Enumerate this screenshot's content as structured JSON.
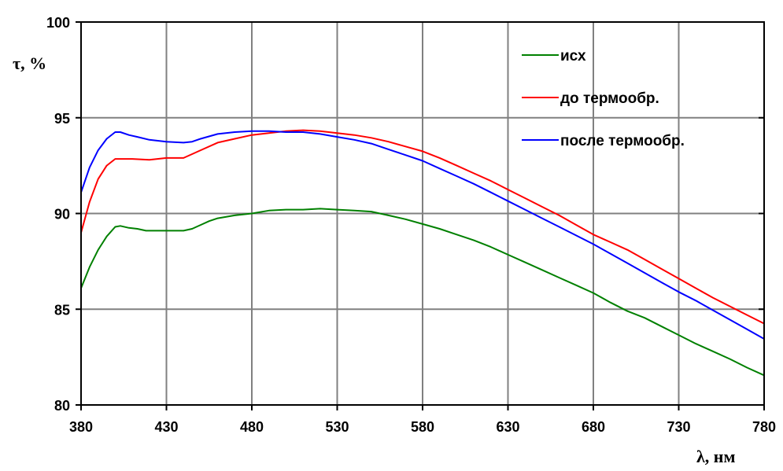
{
  "chart_data": {
    "type": "line",
    "title": "",
    "xlabel": "λ, нм",
    "ylabel": "τ, %",
    "xlim": [
      380,
      780
    ],
    "ylim": [
      80,
      100
    ],
    "xticks": [
      "380",
      "430",
      "480",
      "530",
      "580",
      "630",
      "680",
      "730",
      "780"
    ],
    "yticks": [
      "80",
      "85",
      "90",
      "95",
      "100"
    ],
    "grid": true,
    "legend_position": "top-right",
    "series": [
      {
        "name": "исх",
        "color": "#008000",
        "x": [
          380,
          385,
          390,
          395,
          400,
          403,
          408,
          413,
          418,
          425,
          430,
          435,
          440,
          445,
          450,
          455,
          460,
          470,
          480,
          490,
          500,
          510,
          520,
          530,
          540,
          550,
          560,
          570,
          580,
          590,
          600,
          610,
          620,
          630,
          640,
          650,
          660,
          670,
          680,
          690,
          700,
          710,
          720,
          730,
          740,
          750,
          760,
          770,
          780
        ],
        "y": [
          86.1,
          87.2,
          88.1,
          88.8,
          89.3,
          89.35,
          89.25,
          89.2,
          89.1,
          89.1,
          89.1,
          89.1,
          89.1,
          89.2,
          89.4,
          89.6,
          89.75,
          89.9,
          90.0,
          90.15,
          90.2,
          90.2,
          90.25,
          90.2,
          90.15,
          90.1,
          89.9,
          89.7,
          89.45,
          89.2,
          88.9,
          88.6,
          88.25,
          87.85,
          87.45,
          87.05,
          86.65,
          86.25,
          85.85,
          85.35,
          84.9,
          84.55,
          84.1,
          83.65,
          83.2,
          82.8,
          82.4,
          81.95,
          81.55
        ]
      },
      {
        "name": "до термообр.",
        "color": "#ff0000",
        "x": [
          380,
          385,
          390,
          395,
          400,
          405,
          410,
          420,
          430,
          440,
          445,
          450,
          460,
          470,
          480,
          490,
          500,
          510,
          520,
          530,
          540,
          550,
          560,
          570,
          580,
          590,
          600,
          610,
          620,
          630,
          640,
          650,
          660,
          670,
          680,
          690,
          700,
          710,
          720,
          730,
          740,
          750,
          760,
          770,
          780
        ],
        "y": [
          89.0,
          90.6,
          91.8,
          92.5,
          92.85,
          92.85,
          92.85,
          92.8,
          92.9,
          92.9,
          93.1,
          93.3,
          93.7,
          93.9,
          94.1,
          94.2,
          94.3,
          94.35,
          94.3,
          94.2,
          94.1,
          93.95,
          93.75,
          93.5,
          93.25,
          92.9,
          92.5,
          92.1,
          91.7,
          91.25,
          90.8,
          90.35,
          89.9,
          89.4,
          88.9,
          88.5,
          88.1,
          87.6,
          87.1,
          86.6,
          86.1,
          85.6,
          85.15,
          84.7,
          84.25
        ]
      },
      {
        "name": "после термообр.",
        "color": "#0000ff",
        "x": [
          380,
          385,
          390,
          395,
          400,
          403,
          408,
          413,
          420,
          430,
          440,
          445,
          450,
          460,
          470,
          480,
          490,
          500,
          510,
          520,
          530,
          540,
          550,
          560,
          570,
          580,
          590,
          600,
          610,
          620,
          630,
          640,
          650,
          660,
          670,
          680,
          690,
          700,
          710,
          720,
          730,
          740,
          750,
          760,
          770,
          780
        ],
        "y": [
          91.1,
          92.4,
          93.3,
          93.9,
          94.25,
          94.25,
          94.1,
          94.0,
          93.85,
          93.75,
          93.7,
          93.75,
          93.9,
          94.15,
          94.25,
          94.3,
          94.3,
          94.25,
          94.25,
          94.15,
          94.0,
          93.85,
          93.65,
          93.35,
          93.05,
          92.75,
          92.35,
          91.95,
          91.55,
          91.1,
          90.65,
          90.2,
          89.75,
          89.3,
          88.85,
          88.4,
          87.9,
          87.4,
          86.9,
          86.4,
          85.9,
          85.45,
          84.95,
          84.45,
          83.95,
          83.45
        ]
      }
    ]
  }
}
